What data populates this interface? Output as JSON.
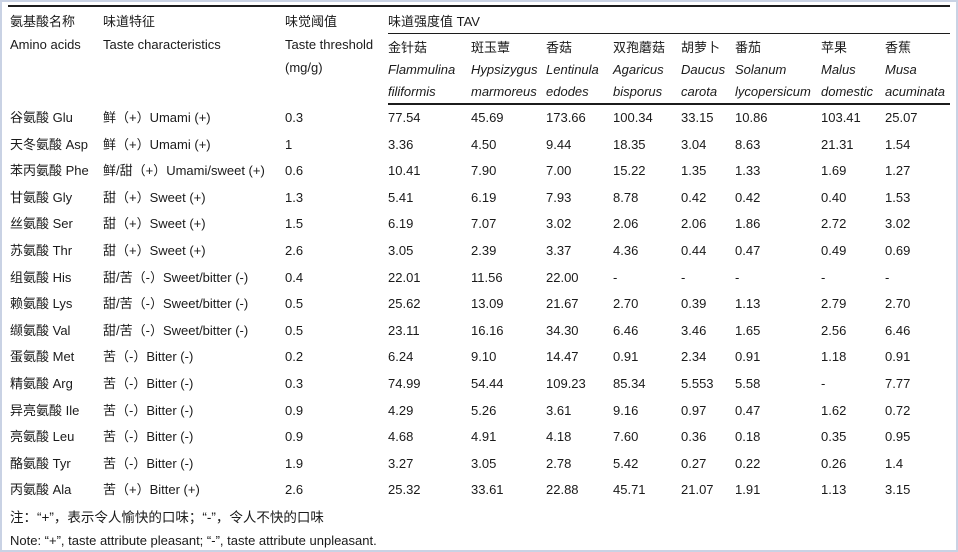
{
  "header": {
    "amino_cn": "氨基酸名称",
    "amino_en": "Amino acids",
    "taste_cn": "味道特征",
    "taste_en": "Taste characteristics",
    "threshold_cn": "味觉阈值",
    "threshold_en": "Taste threshold",
    "threshold_unit": "(mg/g)",
    "tav_label": "味道强度值 TAV"
  },
  "species": [
    {
      "cn": "金针菇",
      "latin": [
        "Flammulina",
        "filiformis"
      ]
    },
    {
      "cn": "斑玉蕈",
      "latin": [
        "Hypsizygus",
        "marmoreus"
      ]
    },
    {
      "cn": "香菇",
      "latin": [
        "Lentinula",
        "edodes"
      ]
    },
    {
      "cn": "双孢蘑菇",
      "latin": [
        "Agaricus",
        "bisporus"
      ]
    },
    {
      "cn": "胡萝卜",
      "latin": [
        "Daucus",
        "carota"
      ]
    },
    {
      "cn": "番茄",
      "latin": [
        "Solanum",
        "lycopersicum"
      ]
    },
    {
      "cn": "苹果",
      "latin": [
        "Malus",
        "domestic"
      ]
    },
    {
      "cn": "香蕉",
      "latin": [
        "Musa",
        "acuminata"
      ]
    }
  ],
  "rows": [
    {
      "name": "谷氨酸 Glu",
      "taste": "鲜（+）Umami (+)",
      "threshold": "0.3",
      "values": [
        "77.54",
        "45.69",
        "173.66",
        "100.34",
        "33.15",
        "10.86",
        "103.41",
        "25.07"
      ]
    },
    {
      "name": "天冬氨酸 Asp",
      "taste": "鲜（+）Umami (+)",
      "threshold": "1",
      "values": [
        "3.36",
        "4.50",
        "9.44",
        "18.35",
        "3.04",
        "8.63",
        "21.31",
        "1.54"
      ]
    },
    {
      "name": "苯丙氨酸 Phe",
      "taste": "鲜/甜（+）Umami/sweet (+)",
      "threshold": "0.6",
      "values": [
        "10.41",
        "7.90",
        "7.00",
        "15.22",
        "1.35",
        "1.33",
        "1.69",
        "1.27"
      ]
    },
    {
      "name": "甘氨酸 Gly",
      "taste": "甜（+）Sweet (+)",
      "threshold": "1.3",
      "values": [
        "5.41",
        "6.19",
        "7.93",
        "8.78",
        "0.42",
        "0.42",
        "0.40",
        "1.53"
      ]
    },
    {
      "name": "丝氨酸 Ser",
      "taste": "甜（+）Sweet (+)",
      "threshold": "1.5",
      "values": [
        "6.19",
        "7.07",
        "3.02",
        "2.06",
        "2.06",
        "1.86",
        "2.72",
        "3.02"
      ]
    },
    {
      "name": "苏氨酸 Thr",
      "taste": "甜（+）Sweet (+)",
      "threshold": "2.6",
      "values": [
        "3.05",
        "2.39",
        "3.37",
        "4.36",
        "0.44",
        "0.47",
        "0.49",
        "0.69"
      ]
    },
    {
      "name": "组氨酸 His",
      "taste": "甜/苦（-）Sweet/bitter (-)",
      "threshold": "0.4",
      "values": [
        "22.01",
        "11.56",
        "22.00",
        "-",
        "-",
        "-",
        "-",
        "-"
      ]
    },
    {
      "name": "赖氨酸 Lys",
      "taste": "甜/苦（-）Sweet/bitter (-)",
      "threshold": "0.5",
      "values": [
        "25.62",
        "13.09",
        "21.67",
        "2.70",
        "0.39",
        "1.13",
        "2.79",
        "2.70"
      ]
    },
    {
      "name": "缬氨酸 Val",
      "taste": "甜/苦（-）Sweet/bitter (-)",
      "threshold": "0.5",
      "values": [
        "23.11",
        "16.16",
        "34.30",
        "6.46",
        "3.46",
        "1.65",
        "2.56",
        "6.46"
      ]
    },
    {
      "name": "蛋氨酸 Met",
      "taste": "苦（-）Bitter (-)",
      "threshold": "0.2",
      "values": [
        "6.24",
        "9.10",
        "14.47",
        "0.91",
        "2.34",
        "0.91",
        "1.18",
        "0.91"
      ]
    },
    {
      "name": "精氨酸 Arg",
      "taste": "苦（-）Bitter (-)",
      "threshold": "0.3",
      "values": [
        "74.99",
        "54.44",
        "109.23",
        "85.34",
        "5.553",
        "5.58",
        "-",
        "7.77"
      ]
    },
    {
      "name": "异亮氨酸 Ile",
      "taste": "苦（-）Bitter (-)",
      "threshold": "0.9",
      "values": [
        "4.29",
        "5.26",
        "3.61",
        "9.16",
        "0.97",
        "0.47",
        "1.62",
        "0.72"
      ]
    },
    {
      "name": "亮氨酸 Leu",
      "taste": "苦（-）Bitter (-)",
      "threshold": "0.9",
      "values": [
        "4.68",
        "4.91",
        "4.18",
        "7.60",
        "0.36",
        "0.18",
        "0.35",
        "0.95"
      ]
    },
    {
      "name": "酪氨酸 Tyr",
      "taste": "苦（-）Bitter (-)",
      "threshold": "1.9",
      "values": [
        "3.27",
        "3.05",
        "2.78",
        "5.42",
        "0.27",
        "0.22",
        "0.26",
        "1.4"
      ]
    },
    {
      "name": "丙氨酸 Ala",
      "taste": "苦（+）Bitter (+)",
      "threshold": "2.6",
      "values": [
        "25.32",
        "33.61",
        "22.88",
        "45.71",
        "21.07",
        "1.91",
        "1.13",
        "3.15"
      ]
    }
  ],
  "notes": {
    "cn": "注：“+”，表示令人愉快的口味；“-”，令人不快的口味",
    "en": "Note: “+”, taste attribute pleasant; “-”, taste attribute unpleasant."
  }
}
